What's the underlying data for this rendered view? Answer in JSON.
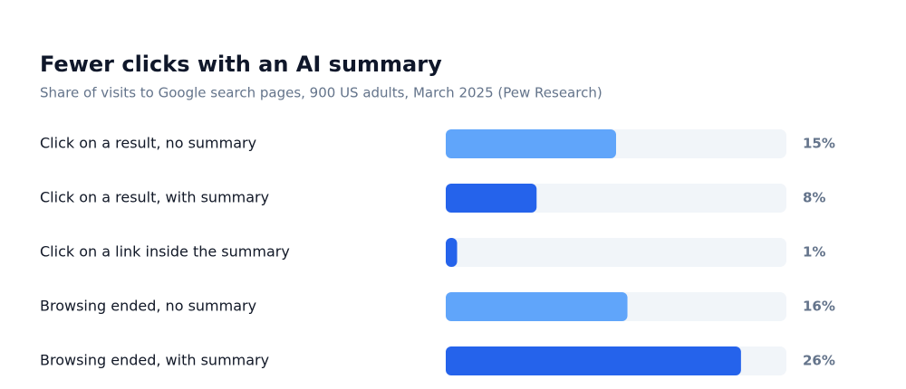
{
  "chart_data": {
    "type": "bar",
    "orientation": "horizontal",
    "title": "Fewer clicks with an AI summary",
    "subtitle": "Share of visits to Google search pages, 900 US adults, March 2025 (Pew Research)",
    "categories": [
      "Click on a result, no summary",
      "Click on a result, with summary",
      "Click on a link inside the summary",
      "Browsing ended, no summary",
      "Browsing ended, with summary"
    ],
    "values": [
      15,
      8,
      1,
      16,
      26
    ],
    "value_labels": [
      "15%",
      "8%",
      "1%",
      "16%",
      "26%"
    ],
    "colors": [
      "#60a5fa",
      "#2563eb",
      "#2563eb",
      "#60a5fa",
      "#2563eb"
    ],
    "track_color": "#f1f5f9",
    "xlim": [
      0,
      30
    ]
  }
}
